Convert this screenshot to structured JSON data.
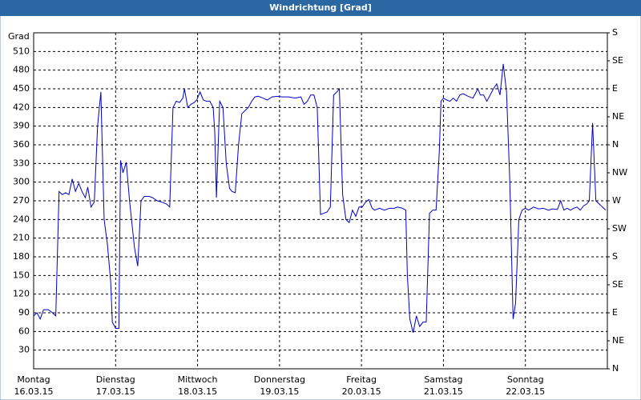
{
  "chart_data": {
    "type": "line",
    "title": "Windrichtung [Grad]",
    "y_label": "Grad",
    "xlim": [
      0,
      7
    ],
    "xticks": [
      {
        "value": 0,
        "label": "Montag"
      },
      {
        "value": 1,
        "label": "Dienstag"
      },
      {
        "value": 2,
        "label": "Mittwoch"
      },
      {
        "value": 3,
        "label": "Donnerstag"
      },
      {
        "value": 4,
        "label": "Freitag"
      },
      {
        "value": 5,
        "label": "Samstag"
      },
      {
        "value": 6,
        "label": "Sonntag"
      }
    ],
    "xtick_dates": [
      "16.03.15",
      "17.03.15",
      "18.03.15",
      "19.03.15",
      "20.03.15",
      "21.03.15",
      "22.03.15"
    ],
    "ylim": [
      0,
      540
    ],
    "yticks": [
      30,
      60,
      90,
      120,
      150,
      180,
      210,
      240,
      270,
      300,
      330,
      360,
      390,
      420,
      450,
      480,
      510
    ],
    "y2lim": [
      0,
      540
    ],
    "y2ticks": [
      {
        "value": 0,
        "label": "N"
      },
      {
        "value": 45,
        "label": "NE"
      },
      {
        "value": 90,
        "label": "E"
      },
      {
        "value": 135,
        "label": "SE"
      },
      {
        "value": 180,
        "label": "S"
      },
      {
        "value": 225,
        "label": "SW"
      },
      {
        "value": 270,
        "label": "W"
      },
      {
        "value": 315,
        "label": "NW"
      },
      {
        "value": 360,
        "label": "N"
      },
      {
        "value": 405,
        "label": "NE"
      },
      {
        "value": 450,
        "label": "E"
      },
      {
        "value": 495,
        "label": "SE"
      },
      {
        "value": 540,
        "label": "S"
      }
    ],
    "grid": true,
    "series": [
      {
        "color": "#0000cc",
        "x": [
          0,
          0.04,
          0.08,
          0.12,
          0.18,
          0.23,
          0.27,
          0.31,
          0.35,
          0.39,
          0.43,
          0.47,
          0.51,
          0.55,
          0.59,
          0.63,
          0.66,
          0.7,
          0.74,
          0.78,
          0.82,
          0.86,
          0.9,
          0.94,
          0.96,
          1.0,
          1.04,
          1.06,
          1.09,
          1.13,
          1.17,
          1.23,
          1.27,
          1.31,
          1.35,
          1.41,
          1.45,
          1.51,
          1.56,
          1.62,
          1.66,
          1.7,
          1.74,
          1.78,
          1.82,
          1.84,
          1.88,
          1.92,
          1.96,
          1.99,
          2.03,
          2.07,
          2.11,
          2.15,
          2.19,
          2.21,
          2.23,
          2.27,
          2.31,
          2.35,
          2.39,
          2.42,
          2.46,
          2.5,
          2.54,
          2.58,
          2.62,
          2.66,
          2.7,
          2.74,
          2.8,
          2.85,
          2.91,
          2.97,
          3.03,
          3.11,
          3.19,
          3.26,
          3.3,
          3.34,
          3.38,
          3.42,
          3.46,
          3.5,
          3.54,
          3.58,
          3.62,
          3.66,
          3.7,
          3.73,
          3.77,
          3.81,
          3.85,
          3.89,
          3.93,
          3.97,
          4.01,
          4.05,
          4.09,
          4.13,
          4.16,
          4.22,
          4.28,
          4.34,
          4.4,
          4.44,
          4.5,
          4.54,
          4.56,
          4.59,
          4.63,
          4.67,
          4.71,
          4.75,
          4.79,
          4.83,
          4.87,
          4.91,
          4.95,
          4.97,
          5.0,
          5.04,
          5.08,
          5.12,
          5.16,
          5.2,
          5.24,
          5.3,
          5.36,
          5.42,
          5.45,
          5.49,
          5.53,
          5.57,
          5.61,
          5.65,
          5.69,
          5.73,
          5.77,
          5.81,
          5.85,
          5.88,
          5.92,
          5.96,
          6.0,
          6.04,
          6.1,
          6.16,
          6.22,
          6.28,
          6.33,
          6.39,
          6.43,
          6.47,
          6.51,
          6.55,
          6.59,
          6.63,
          6.67,
          6.71,
          6.75,
          6.78,
          6.82,
          6.86,
          6.9,
          6.94,
          6.98
        ],
        "values": [
          85,
          90,
          80,
          95,
          95,
          90,
          85,
          285,
          280,
          283,
          280,
          305,
          285,
          298,
          285,
          275,
          292,
          260,
          268,
          390,
          445,
          240,
          200,
          140,
          75,
          65,
          65,
          335,
          315,
          332,
          270,
          195,
          165,
          270,
          277,
          277,
          275,
          270,
          268,
          265,
          260,
          420,
          430,
          428,
          435,
          450,
          420,
          425,
          428,
          432,
          445,
          432,
          430,
          430,
          420,
          380,
          275,
          430,
          420,
          330,
          290,
          285,
          283,
          360,
          410,
          415,
          420,
          430,
          437,
          438,
          435,
          432,
          437,
          438,
          437,
          437,
          435,
          437,
          425,
          430,
          440,
          440,
          420,
          248,
          250,
          252,
          260,
          440,
          445,
          450,
          280,
          240,
          235,
          255,
          245,
          260,
          260,
          268,
          272,
          258,
          255,
          258,
          255,
          258,
          258,
          260,
          258,
          255,
          150,
          80,
          58,
          85,
          68,
          75,
          75,
          250,
          255,
          255,
          350,
          430,
          435,
          432,
          430,
          435,
          430,
          440,
          442,
          438,
          435,
          450,
          440,
          440,
          430,
          440,
          450,
          458,
          440,
          490,
          445,
          300,
          80,
          105,
          240,
          255,
          258,
          255,
          260,
          257,
          258,
          255,
          257,
          256,
          270,
          255,
          258,
          255,
          258,
          260,
          255,
          262,
          265,
          270,
          395,
          270,
          265,
          260,
          255
        ]
      }
    ]
  }
}
